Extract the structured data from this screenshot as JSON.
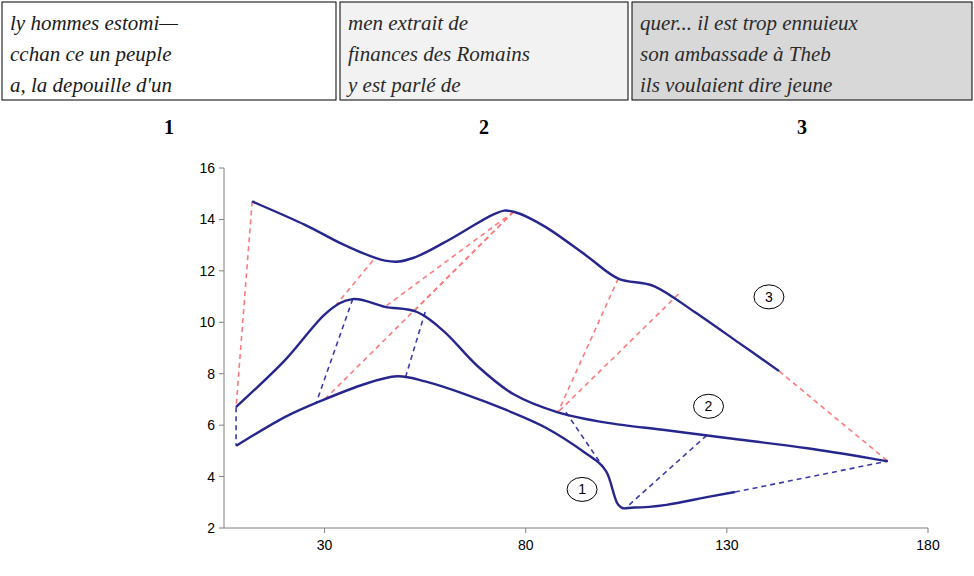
{
  "chart_data": {
    "type": "line",
    "xlim": [
      5,
      180
    ],
    "xticks": [
      30,
      80,
      130,
      180
    ],
    "ylim": [
      2,
      16
    ],
    "yticks": [
      2,
      4,
      6,
      8,
      10,
      12,
      14,
      16
    ],
    "grid": false,
    "series": [
      {
        "name": "1",
        "color": "#26268c",
        "line_style": "solid",
        "x": [
          8,
          20,
          30,
          40,
          48,
          55,
          65,
          75,
          85,
          95,
          100,
          103,
          107,
          115,
          125,
          132
        ],
        "values": [
          5.2,
          6.3,
          7.0,
          7.6,
          7.9,
          7.7,
          7.2,
          6.6,
          5.9,
          4.9,
          4.2,
          2.9,
          2.8,
          2.9,
          3.2,
          3.4
        ]
      },
      {
        "name": "2",
        "color": "#26268c",
        "line_style": "solid",
        "x": [
          8,
          20,
          30,
          37,
          45,
          53,
          60,
          68,
          77,
          88,
          100,
          115,
          130,
          150,
          170
        ],
        "values": [
          6.7,
          8.5,
          10.3,
          10.9,
          10.6,
          10.4,
          9.6,
          8.3,
          7.2,
          6.5,
          6.1,
          5.8,
          5.5,
          5.1,
          4.6
        ]
      },
      {
        "name": "3",
        "color": "#26268c",
        "line_style": "solid",
        "x": [
          12,
          25,
          35,
          45,
          52,
          62,
          72,
          77,
          85,
          95,
          103,
          112,
          122,
          133,
          143
        ],
        "values": [
          14.7,
          13.8,
          13.0,
          12.4,
          12.5,
          13.3,
          14.2,
          14.3,
          13.7,
          12.6,
          11.7,
          11.4,
          10.4,
          9.2,
          8.1
        ]
      }
    ],
    "alignments": [
      {
        "color": "#ff7a7a",
        "line_style": "dashed",
        "segments": [
          {
            "x": [
              12,
              8
            ],
            "y": [
              14.7,
              6.7
            ]
          },
          {
            "x": [
              42,
              33
            ],
            "y": [
              12.4,
              10.7
            ]
          },
          {
            "x": [
              77,
              30
            ],
            "y": [
              14.3,
              7.0
            ]
          },
          {
            "x": [
              77,
              45
            ],
            "y": [
              14.3,
              10.6
            ]
          },
          {
            "x": [
              77,
              52
            ],
            "y": [
              14.3,
              10.4
            ]
          },
          {
            "x": [
              103,
              88
            ],
            "y": [
              11.7,
              6.5
            ]
          },
          {
            "x": [
              118,
              88
            ],
            "y": [
              11.1,
              6.5
            ]
          },
          {
            "x": [
              143,
              170
            ],
            "y": [
              8.1,
              4.6
            ]
          }
        ]
      },
      {
        "color": "#3a3aa8",
        "line_style": "dashed",
        "segments": [
          {
            "x": [
              8,
              8
            ],
            "y": [
              6.7,
              5.2
            ]
          },
          {
            "x": [
              37,
              28
            ],
            "y": [
              10.9,
              6.9
            ]
          },
          {
            "x": [
              55,
              50
            ],
            "y": [
              10.4,
              7.8
            ]
          },
          {
            "x": [
              90,
              100
            ],
            "y": [
              6.5,
              4.2
            ]
          },
          {
            "x": [
              125,
              105
            ],
            "y": [
              5.6,
              2.8
            ]
          },
          {
            "x": [
              132,
              170
            ],
            "y": [
              3.4,
              4.6
            ]
          }
        ]
      }
    ]
  },
  "samples": [
    {
      "label": "1",
      "lines": [
        "ly hommes estomi—",
        "cchan ce un peuple",
        "a, la depouille d'un"
      ]
    },
    {
      "label": "2",
      "lines": [
        "men extrait de",
        "finances des Romains",
        "y est parlé de"
      ]
    },
    {
      "label": "3",
      "lines": [
        "quer... il est trop ennuieux",
        "son ambassade à Theb",
        "ils voulaient dire jeune"
      ]
    }
  ]
}
